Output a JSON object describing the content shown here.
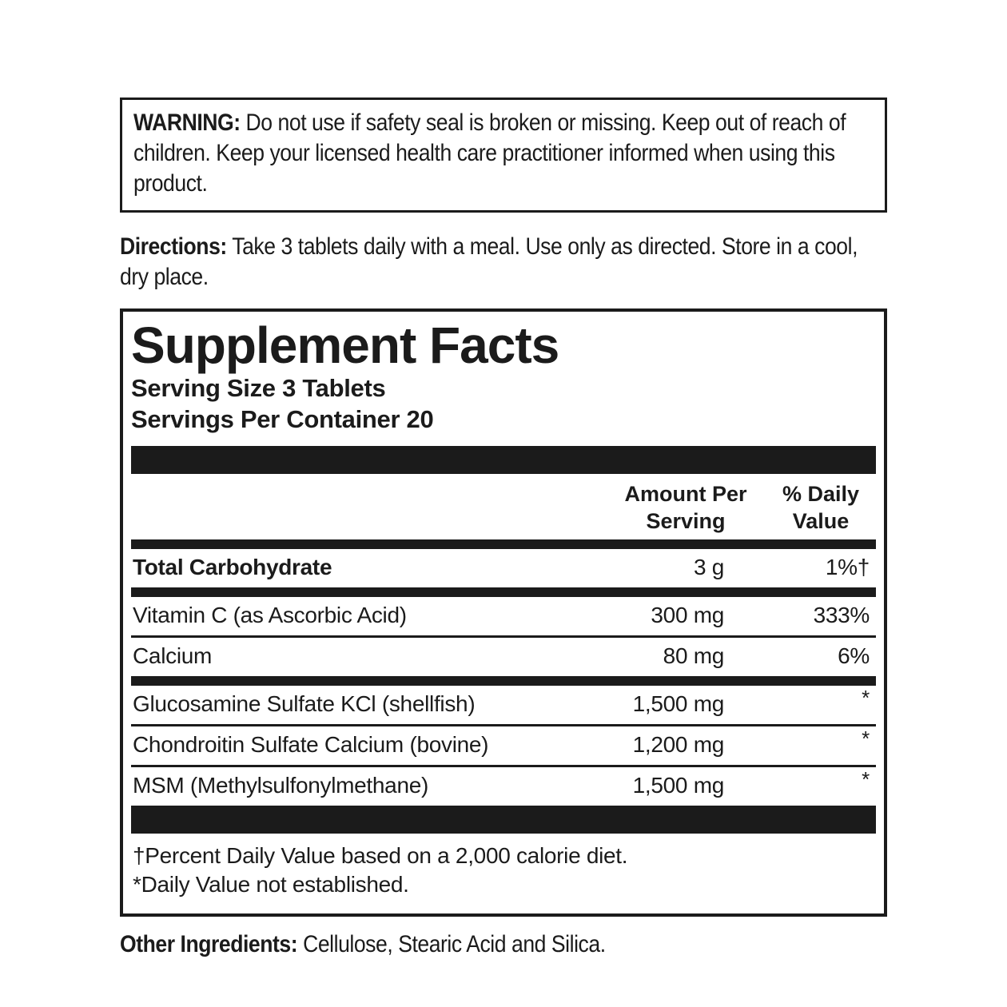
{
  "warning": {
    "label": "WARNING:",
    "text": " Do not use if safety seal is broken or missing. Keep out of reach of children. Keep your licensed health care practitioner informed when using this product."
  },
  "directions": {
    "label": "Directions:",
    "text": " Take 3 tablets daily with a meal. Use only as directed. Store in a cool, dry place."
  },
  "supplement_facts": {
    "title": "Supplement Facts",
    "serving_size": "Serving Size 3 Tablets",
    "servings_per_container": "Servings Per Container 20",
    "columns": {
      "amount_per_serving": "Amount Per\nServing",
      "percent_daily_value": "% Daily\nValue"
    },
    "rows": [
      {
        "name": "Total Carbohydrate",
        "amount": "3 g",
        "dv": "1%†"
      },
      {
        "name": "Vitamin C (as Ascorbic Acid)",
        "amount": "300 mg",
        "dv": "333%"
      },
      {
        "name": "Calcium",
        "amount": "80 mg",
        "dv": "6%"
      },
      {
        "name": "Glucosamine Sulfate KCl (shellfish)",
        "amount": "1,500 mg",
        "dv": "*"
      },
      {
        "name": "Chondroitin Sulfate Calcium (bovine)",
        "amount": "1,200 mg",
        "dv": "*"
      },
      {
        "name": "MSM (Methylsulfonylmethane)",
        "amount": "1,500 mg",
        "dv": "*"
      }
    ],
    "footnotes": [
      "†Percent Daily Value based on a 2,000 calorie diet.",
      "*Daily Value not established."
    ]
  },
  "other_ingredients": {
    "label": "Other Ingredients:",
    "text": " Cellulose, Stearic Acid and Silica."
  },
  "colors": {
    "ink": "#1b1b1b",
    "background": "#ffffff"
  }
}
